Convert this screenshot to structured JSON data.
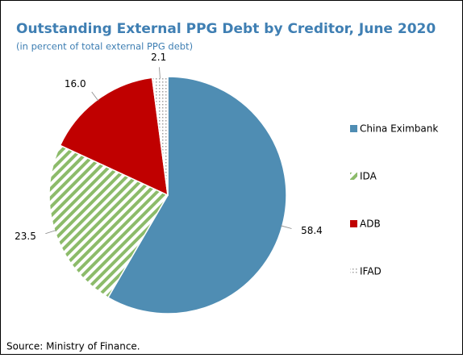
{
  "chart_data": {
    "type": "pie",
    "title": "Outstanding External PPG Debt by Creditor, June 2020",
    "subtitle": "(in percent of total external PPG debt)",
    "source": "Source: Ministry of Finance.",
    "categories": [
      "China Eximbank",
      "IDA",
      "ADB",
      "IFAD"
    ],
    "values": [
      58.4,
      23.5,
      16.0,
      2.1
    ],
    "value_labels": [
      "58.4",
      "23.5",
      "16.0",
      "2.1"
    ],
    "colors": [
      "#4f8db3",
      "#8cbb6a",
      "#c00000",
      "#a0a0a0"
    ],
    "fills": [
      "solid",
      "hatch",
      "solid",
      "dots"
    ],
    "legend": "right"
  }
}
